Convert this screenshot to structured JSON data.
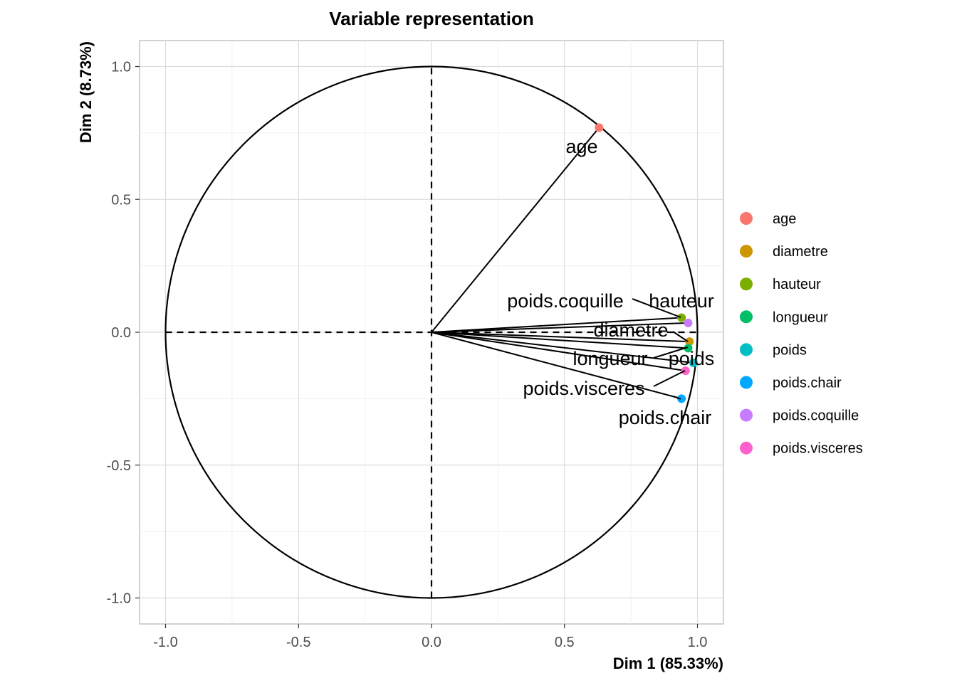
{
  "chart_data": {
    "type": "scatter",
    "subtype": "pca-correlation-circle",
    "title": "Variable representation",
    "xlabel": "Dim 1 (85.33%)",
    "ylabel": "Dim 2 (8.73%)",
    "xlim": [
      -1.1,
      1.1
    ],
    "ylim": [
      -1.1,
      1.1
    ],
    "xticks": [
      "-1.0",
      "-0.5",
      "0.0",
      "0.5",
      "1.0"
    ],
    "yticks": [
      "-1.0",
      "-0.5",
      "0.0",
      "0.5",
      "1.0"
    ],
    "grid": true,
    "legend_position": "right",
    "unit_circle": true,
    "variables": [
      {
        "name": "age",
        "x": 0.63,
        "y": 0.77,
        "color": "#F8766D"
      },
      {
        "name": "diametre",
        "x": 0.97,
        "y": -0.035,
        "color": "#CD9600"
      },
      {
        "name": "hauteur",
        "x": 0.94,
        "y": 0.055,
        "color": "#7CAE00"
      },
      {
        "name": "longueur",
        "x": 0.965,
        "y": -0.06,
        "color": "#00BE67"
      },
      {
        "name": "poids",
        "x": 0.985,
        "y": -0.115,
        "color": "#00BFC4"
      },
      {
        "name": "poids.chair",
        "x": 0.94,
        "y": -0.25,
        "color": "#00A9FF"
      },
      {
        "name": "poids.coquille",
        "x": 0.965,
        "y": 0.035,
        "color": "#C77CFF"
      },
      {
        "name": "poids.visceres",
        "x": 0.955,
        "y": -0.145,
        "color": "#FF61CC"
      }
    ],
    "legend": [
      "age",
      "diametre",
      "hauteur",
      "longueur",
      "poids",
      "poids.chair",
      "poids.coquille",
      "poids.visceres"
    ]
  }
}
